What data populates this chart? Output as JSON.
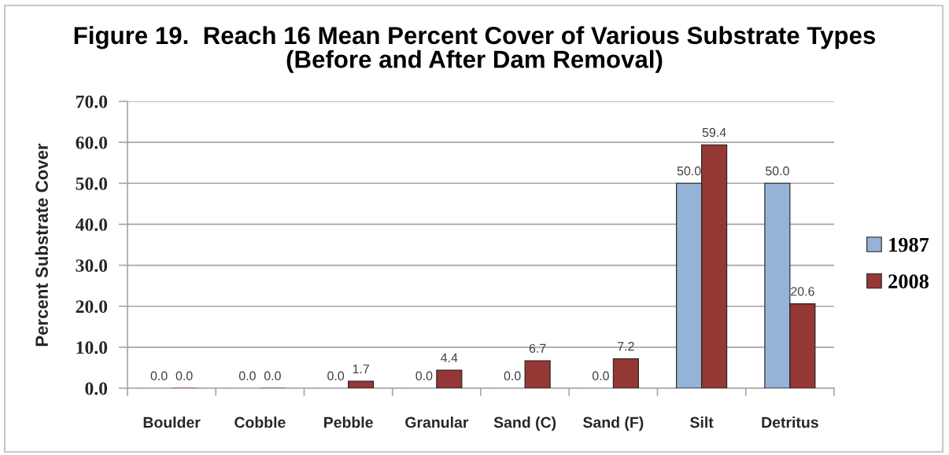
{
  "chart_data": {
    "type": "bar",
    "title": "Figure 19.  Reach 16 Mean Percent Cover of Various Substrate Types\n(Before and After Dam Removal)",
    "ylabel": "Percent Substrate Cover",
    "categories": [
      "Boulder",
      "Cobble",
      "Pebble",
      "Granular",
      "Sand (C)",
      "Sand (F)",
      "Silt",
      "Detritus"
    ],
    "series": [
      {
        "name": "1987",
        "color": "#95b3d7",
        "values": [
          0.0,
          0.0,
          0.0,
          0.0,
          0.0,
          0.0,
          50.0,
          50.0
        ],
        "value_labels": [
          "0.0",
          "0.0",
          "0.0",
          "0.0",
          "0.0",
          "0.0",
          "50.0",
          "50.0"
        ]
      },
      {
        "name": "2008",
        "color": "#953735",
        "values": [
          0.0,
          0.0,
          1.7,
          4.4,
          6.7,
          7.2,
          59.4,
          20.6
        ],
        "value_labels": [
          "0.0",
          "0.0",
          "1.7",
          "4.4",
          "6.7",
          "7.2",
          "59.4",
          "20.6"
        ]
      }
    ],
    "ylim": [
      0,
      70
    ],
    "yticks": [
      {
        "value": 0,
        "label": "0.0"
      },
      {
        "value": 10,
        "label": "10.0"
      },
      {
        "value": 20,
        "label": "20.0"
      },
      {
        "value": 30,
        "label": "30.0"
      },
      {
        "value": 40,
        "label": "40.0"
      },
      {
        "value": 50,
        "label": "50.0"
      },
      {
        "value": 60,
        "label": "60.0"
      },
      {
        "value": 70,
        "label": "70.0"
      }
    ],
    "grid": "y",
    "legend": "right"
  }
}
